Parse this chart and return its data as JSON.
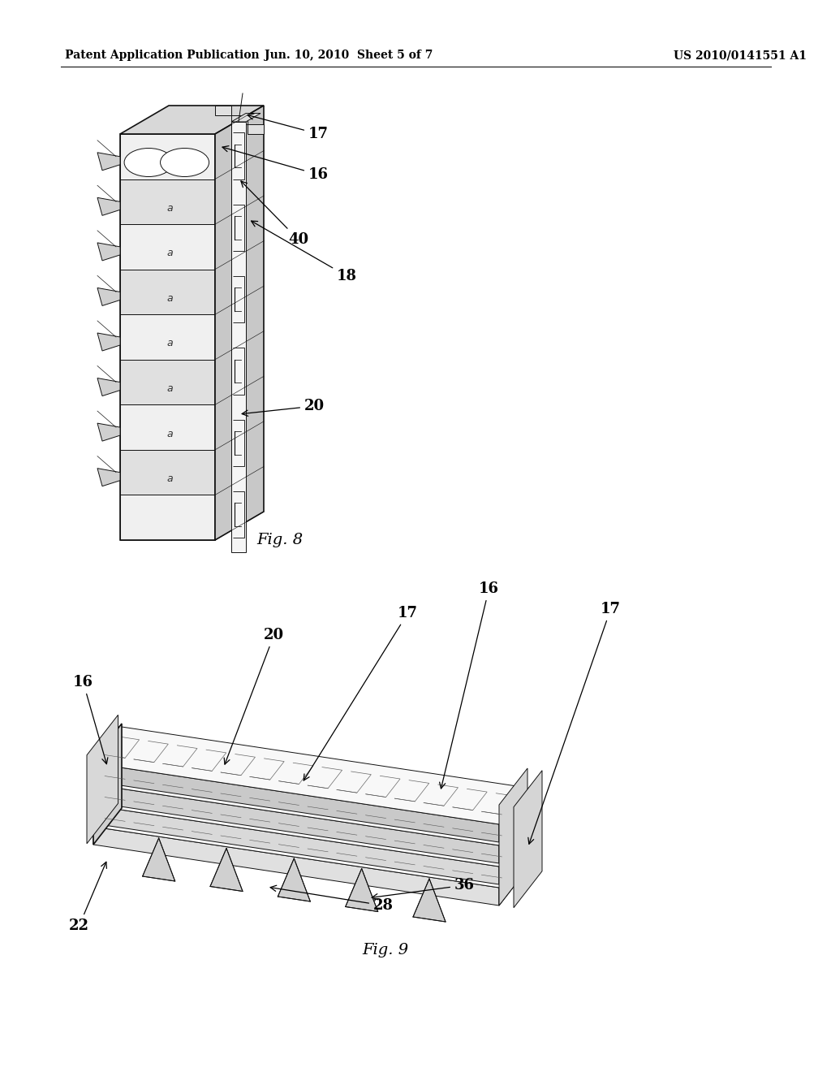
{
  "bg_color": "#ffffff",
  "header_left": "Patent Application Publication",
  "header_center": "Jun. 10, 2010  Sheet 5 of 7",
  "header_right": "US 2010/0141551 A1",
  "fig8_label": "Fig. 8",
  "fig9_label": "Fig. 9",
  "text_color": "#000000",
  "line_color": "#111111",
  "header_fontsize": 10,
  "label_fontsize": 13,
  "fig_label_fontsize": 14
}
